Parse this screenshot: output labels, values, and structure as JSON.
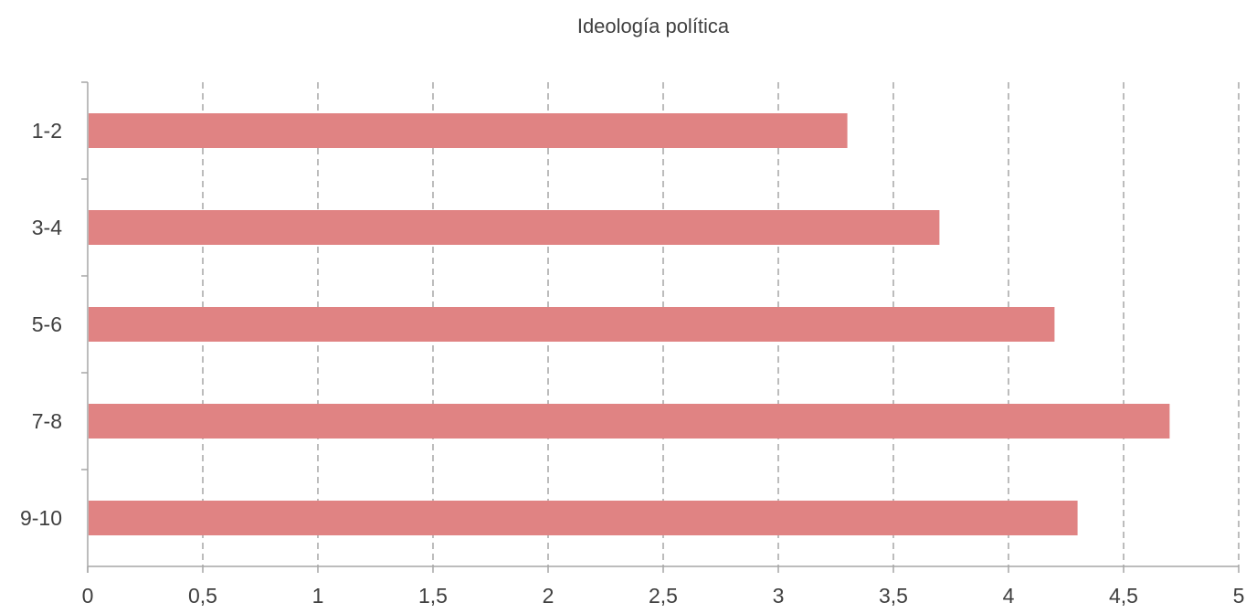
{
  "chart_data": {
    "type": "bar",
    "orientation": "horizontal",
    "title": "Ideología política",
    "categories": [
      "1-2",
      "3-4",
      "5-6",
      "7-8",
      "9-10"
    ],
    "values": [
      3.3,
      3.7,
      4.2,
      4.7,
      4.3
    ],
    "xlim": [
      0,
      5
    ],
    "x_ticks": [
      "0",
      "0,5",
      "1",
      "1,5",
      "2",
      "2,5",
      "3",
      "3,5",
      "4",
      "4,5",
      "5"
    ],
    "xlabel": "",
    "ylabel": "",
    "grid": "vertical dashed",
    "legend": "none",
    "bar_color": "#e08383",
    "gridline_color": "#a6a6a6",
    "axis_color": "#a6a6a6"
  }
}
